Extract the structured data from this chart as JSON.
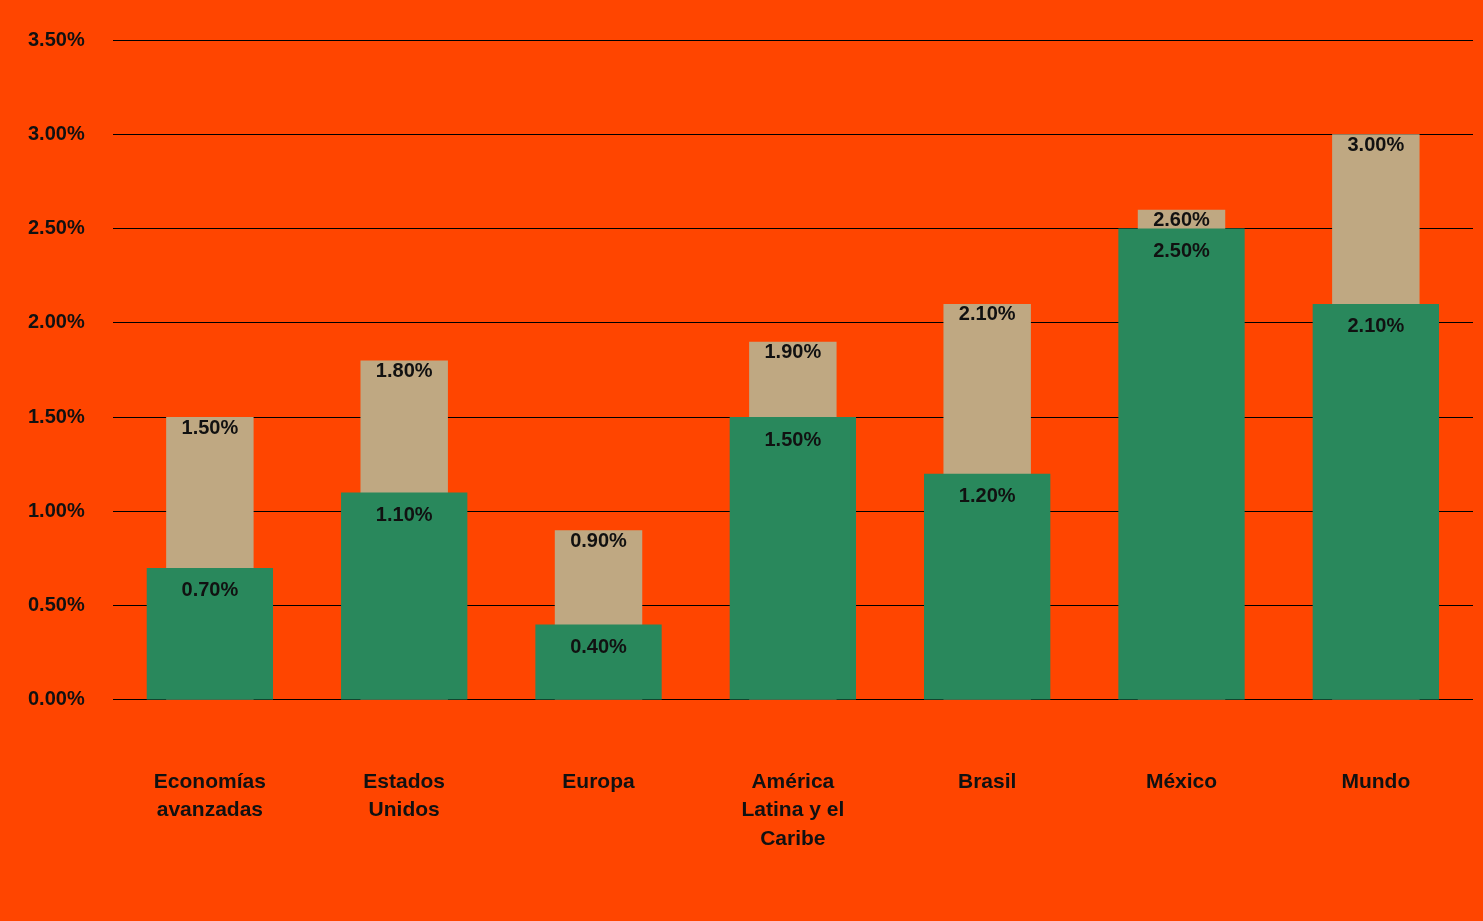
{
  "chart_data": {
    "type": "bar",
    "categories": [
      "Economías avanzadas",
      "Estados Unidos",
      "Europa",
      "América Latina y el Caribe",
      "Brasil",
      "México",
      "Mundo"
    ],
    "series": [
      {
        "color": "#bfa882",
        "values": [
          1.5,
          1.8,
          0.9,
          1.9,
          2.1,
          2.6,
          3.0
        ],
        "value_labels": [
          "1.50%",
          "1.80%",
          "0.90%",
          "1.90%",
          "2.10%",
          "2.60%",
          "3.00%"
        ]
      },
      {
        "color": "#29885c",
        "values": [
          0.7,
          1.1,
          0.4,
          1.5,
          1.2,
          2.5,
          2.1
        ],
        "value_labels": [
          "0.70%",
          "1.10%",
          "0.40%",
          "1.50%",
          "1.20%",
          "2.50%",
          "2.10%"
        ]
      }
    ],
    "ylim": [
      0,
      3.5
    ],
    "yticks": [
      {
        "value": 0,
        "label": "0.00%"
      },
      {
        "value": 0.5,
        "label": "0.50%"
      },
      {
        "value": 1,
        "label": "1.00%"
      },
      {
        "value": 1.5,
        "label": "1.50%"
      },
      {
        "value": 2,
        "label": "2.00%"
      },
      {
        "value": 2.5,
        "label": "2.50%"
      },
      {
        "value": 3,
        "label": "3.00%"
      },
      {
        "value": 3.5,
        "label": "3.50%"
      }
    ],
    "grid": "y",
    "legend": false
  }
}
